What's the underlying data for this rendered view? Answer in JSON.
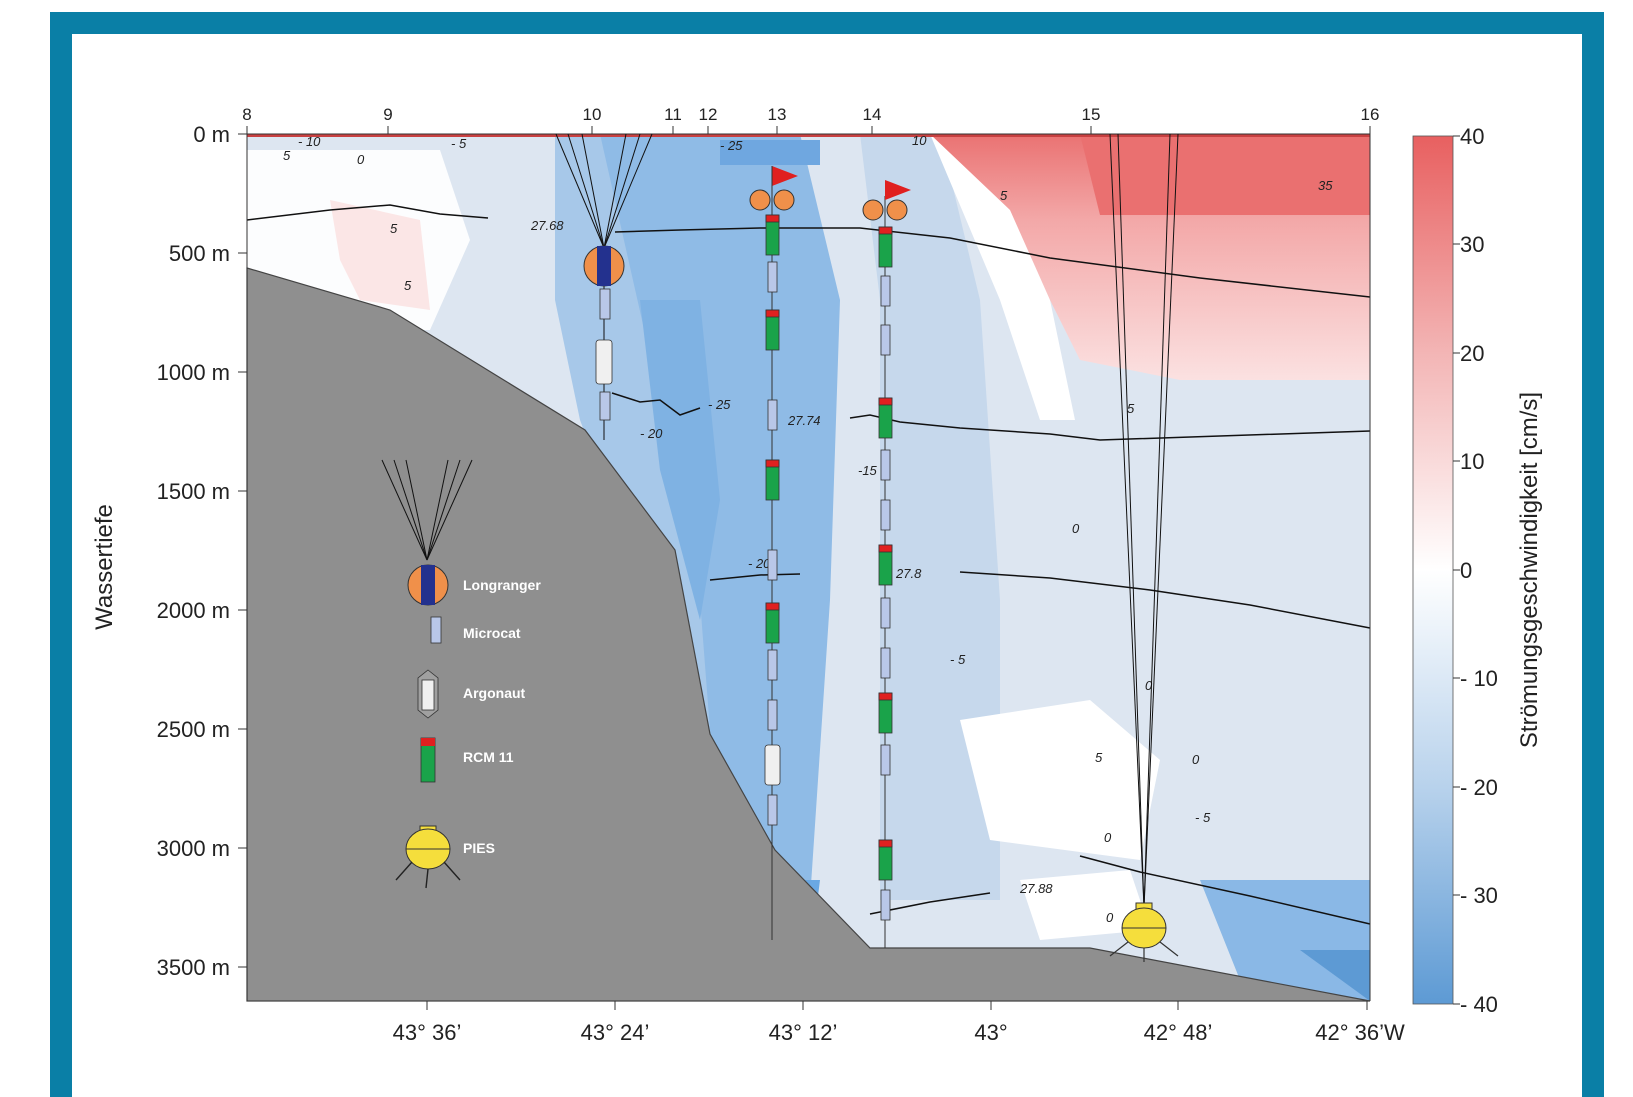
{
  "colors": {
    "frame": "#0a7fa6",
    "seafloor": "#8f8f8f",
    "positive": "#e45b5b",
    "negative": "#5b9bd5",
    "zero": "#ffffff"
  },
  "stations": [
    "8",
    "9",
    "10",
    "11",
    "12",
    "13",
    "14",
    "15",
    "16"
  ],
  "depth_ticks": [
    "0 m",
    "500 m",
    "1000 m",
    "1500 m",
    "2000 m",
    "2500 m",
    "3000 m",
    "3500 m"
  ],
  "lon_ticks": [
    "43° 36’",
    "43° 24’",
    "43° 12’",
    "43°",
    "42° 48’",
    "42° 36’W"
  ],
  "y_axis_title": "Wassertiefe",
  "colorbar": {
    "title": "Strömungsgeschwindigkeit [cm/s]",
    "ticks": [
      "40",
      "30",
      "20",
      "10",
      "0",
      "- 10",
      "- 20",
      "- 30",
      "- 40"
    ]
  },
  "legend": {
    "items": [
      "Longranger",
      "Microcat",
      "Argonaut",
      "RCM 11",
      "PIES"
    ]
  },
  "isopycnal_labels": [
    "27.68",
    "27.74",
    "27.8",
    "27.88"
  ],
  "contour_labels": [
    "- 10",
    "5",
    "0",
    "- 5",
    "5",
    "5",
    "- 25",
    "10",
    "5",
    "35",
    "- 25",
    "- 20",
    "-15",
    "5",
    "0",
    "- 20",
    "- 5",
    "0",
    "5",
    "0",
    "- 5",
    "0",
    "0"
  ]
}
